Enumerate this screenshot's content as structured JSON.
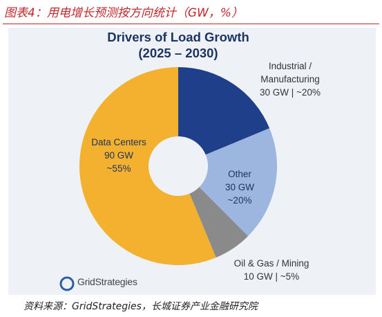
{
  "header": "图表4：用电增长预测按方向统计（GW，%）",
  "source": "资料来源：GridStrategies，长城证券产业金融研究院",
  "logo": "GridStrategies",
  "chart_data": {
    "type": "pie",
    "title": "Drivers of Load Growth",
    "subtitle": "(2025 – 2030)",
    "categories": [
      "Industrial / Manufacturing",
      "Other",
      "Oil & Gas / Mining",
      "Data Centers"
    ],
    "values": [
      30,
      30,
      10,
      90
    ],
    "value_labels": [
      [
        "30 GW | ~20%"
      ],
      [
        "30 GW",
        "~20%"
      ],
      [
        "10 GW | ~5%"
      ],
      [
        "90 GW",
        "~55%"
      ]
    ],
    "colors": [
      "#1f3f8a",
      "#9db6e0",
      "#8a8a8a",
      "#f3b12f"
    ]
  }
}
